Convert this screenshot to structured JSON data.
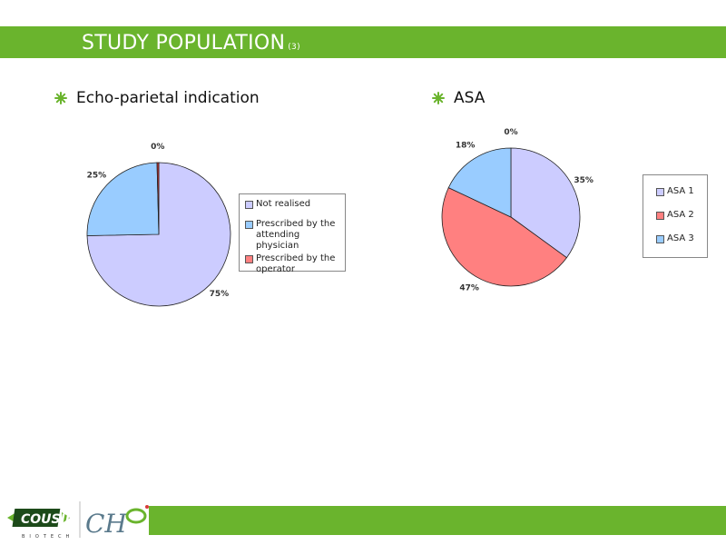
{
  "header": {
    "title": "STUDY POPULATION",
    "title_sup": "(3)"
  },
  "colors": {
    "accent": "#6ab42d",
    "lavender": "#ccccff",
    "red": "#ff8080",
    "blue": "#99ccff",
    "dark_red": "#cc3333"
  },
  "logos": {
    "cousin_text": "COUSIN",
    "cousin_sub": "BIOTECH",
    "ch_text": "CH"
  },
  "chart_data": [
    {
      "type": "pie",
      "title": "Echo-parietal indication",
      "slices": [
        {
          "label": "Not realised",
          "value": 75,
          "pct_label": "75%",
          "color": "#ccccff"
        },
        {
          "label": "Prescribed by the attending physician",
          "value": 25,
          "pct_label": "25%",
          "color": "#99ccff"
        },
        {
          "label": "Prescribed by the operator",
          "value": 0.4,
          "pct_label": "0%",
          "color": "#cc3333"
        }
      ],
      "legend": [
        "Not realised",
        "Prescribed by the attending physician",
        "Prescribed by the operator"
      ],
      "legend_placement": "right"
    },
    {
      "type": "pie",
      "title": "ASA",
      "slices": [
        {
          "label": "ASA 1",
          "value": 35,
          "pct_label": "35%",
          "color": "#ccccff"
        },
        {
          "label": "ASA 2",
          "value": 47,
          "pct_label": "47%",
          "color": "#ff8080"
        },
        {
          "label": "ASA 3",
          "value": 18,
          "pct_label": "18%",
          "color": "#99ccff"
        },
        {
          "label": "",
          "value": 0,
          "pct_label": "0%",
          "color": "#99ccff"
        }
      ],
      "legend": [
        "ASA 1",
        "ASA 2",
        "ASA 3"
      ],
      "legend_placement": "right"
    }
  ]
}
